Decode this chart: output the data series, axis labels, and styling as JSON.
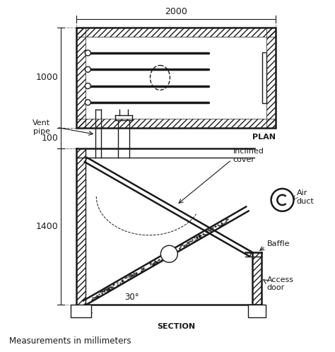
{
  "bg_color": "#ffffff",
  "line_color": "#1a1a1a",
  "dim_2000": "2000",
  "dim_1000": "1000",
  "dim_100": "100",
  "dim_1400": "1400",
  "dim_30": "30°",
  "label_plan": "PLAN",
  "label_section": "SECTION",
  "label_vent": "Vent\npipe",
  "label_inclined": "Inclined\ncover",
  "label_air": "Air\nduct",
  "label_baffle": "Baffle",
  "label_access": "Access\ndoor",
  "label_measurements": "Measurements in millimeters"
}
